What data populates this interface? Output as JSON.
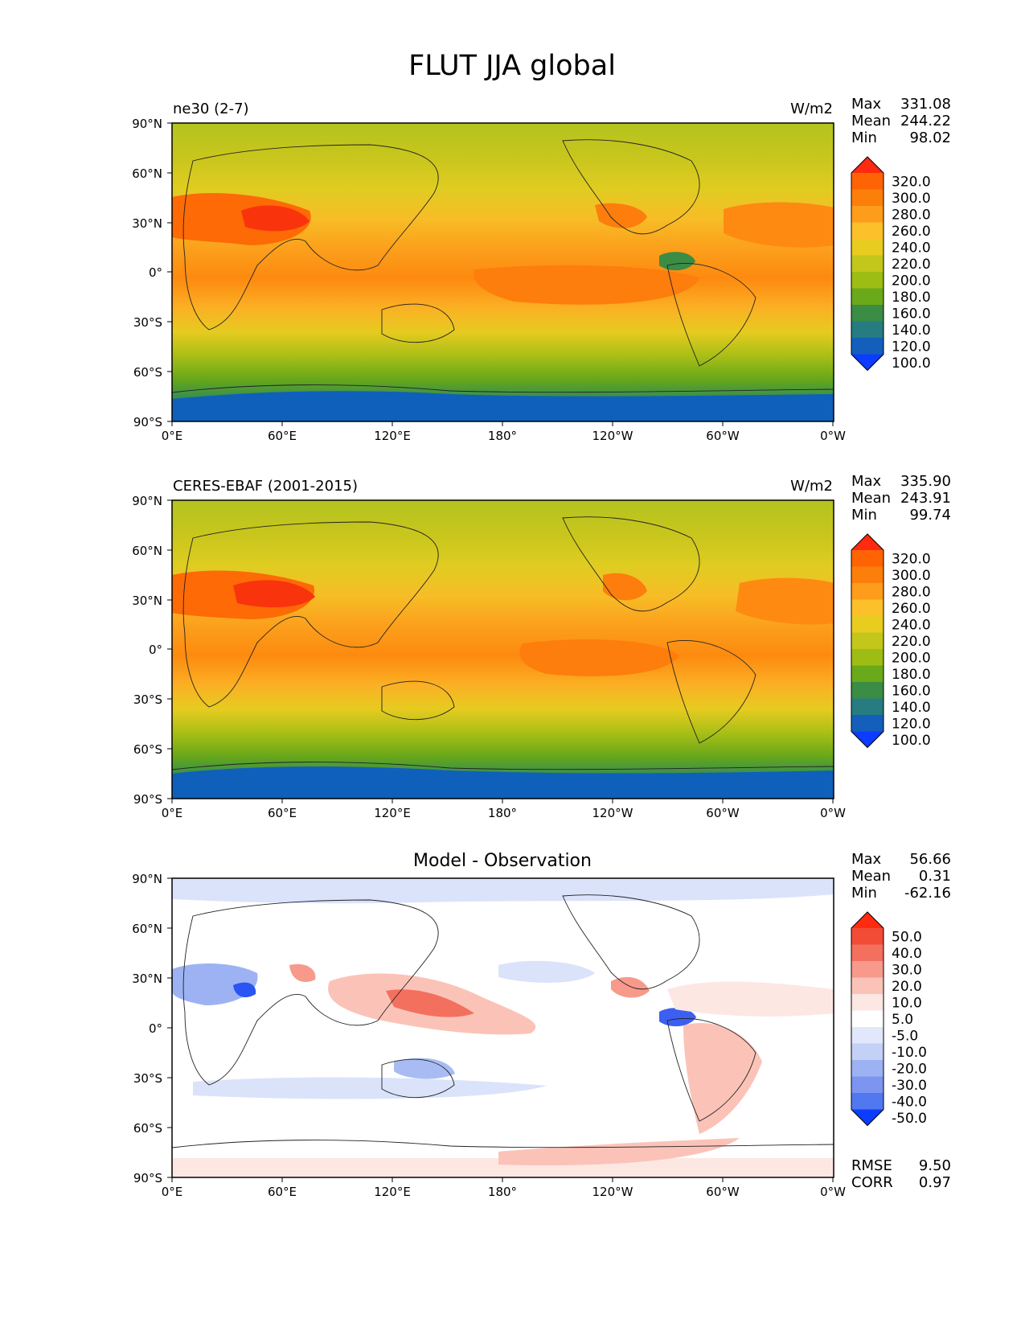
{
  "figure": {
    "title": "FLUT JJA global"
  },
  "chart_data": [
    {
      "type": "heatmap",
      "title": "ne30 (2-7)",
      "units": "W/m2",
      "stats": {
        "labels": [
          "Max",
          "Mean",
          "Min"
        ],
        "values": [
          "331.08",
          "244.22",
          "98.02"
        ]
      },
      "xticks": [
        "0°E",
        "60°E",
        "120°E",
        "180°",
        "120°W",
        "60°W",
        "0°W"
      ],
      "yticks": [
        "90°N",
        "60°N",
        "30°N",
        "0°",
        "30°S",
        "60°S",
        "90°S"
      ],
      "xlim": [
        0,
        360
      ],
      "ylim": [
        -90,
        90
      ],
      "colorbar": {
        "labels": [
          "320.0",
          "300.0",
          "280.0",
          "260.0",
          "240.0",
          "220.0",
          "200.0",
          "180.0",
          "160.0",
          "140.0",
          "120.0",
          "100.0"
        ],
        "colors": [
          "#ff2a0f",
          "#fe6404",
          "#fd7f0b",
          "#fe9c1b",
          "#fbc02a",
          "#e8cc1f",
          "#c3c71b",
          "#9ebd14",
          "#6aa91a",
          "#3b8c45",
          "#267c80",
          "#135fbb",
          "#0b3cff"
        ],
        "extend": "both"
      }
    },
    {
      "type": "heatmap",
      "title": "CERES-EBAF (2001-2015)",
      "units": "W/m2",
      "stats": {
        "labels": [
          "Max",
          "Mean",
          "Min"
        ],
        "values": [
          "335.90",
          "243.91",
          "99.74"
        ]
      },
      "xticks": [
        "0°E",
        "60°E",
        "120°E",
        "180°",
        "120°W",
        "60°W",
        "0°W"
      ],
      "yticks": [
        "90°N",
        "60°N",
        "30°N",
        "0°",
        "30°S",
        "60°S",
        "90°S"
      ],
      "xlim": [
        0,
        360
      ],
      "ylim": [
        -90,
        90
      ],
      "colorbar": {
        "labels": [
          "320.0",
          "300.0",
          "280.0",
          "260.0",
          "240.0",
          "220.0",
          "200.0",
          "180.0",
          "160.0",
          "140.0",
          "120.0",
          "100.0"
        ],
        "colors": [
          "#ff2a0f",
          "#fe6404",
          "#fd7f0b",
          "#fe9c1b",
          "#fbc02a",
          "#e8cc1f",
          "#c3c71b",
          "#9ebd14",
          "#6aa91a",
          "#3b8c45",
          "#267c80",
          "#135fbb",
          "#0b3cff"
        ],
        "extend": "both"
      }
    },
    {
      "type": "heatmap",
      "title": "Model - Observation",
      "units": "",
      "stats": {
        "labels": [
          "Max",
          "Mean",
          "Min"
        ],
        "values": [
          "56.66",
          "0.31",
          "-62.16"
        ]
      },
      "metrics": {
        "labels": [
          "RMSE",
          "CORR"
        ],
        "values": [
          "9.50",
          "0.97"
        ]
      },
      "xticks": [
        "0°E",
        "60°E",
        "120°E",
        "180°",
        "120°W",
        "60°W",
        "0°W"
      ],
      "yticks": [
        "90°N",
        "60°N",
        "30°N",
        "0°",
        "30°S",
        "60°S",
        "90°S"
      ],
      "xlim": [
        0,
        360
      ],
      "ylim": [
        -90,
        90
      ],
      "colorbar": {
        "labels": [
          "50.0",
          "40.0",
          "30.0",
          "20.0",
          "10.0",
          "5.0",
          "-5.0",
          "-10.0",
          "-20.0",
          "-30.0",
          "-40.0",
          "-50.0"
        ],
        "colors": [
          "#ff2a0f",
          "#f24c37",
          "#f3705f",
          "#f79a8b",
          "#fbc3b8",
          "#fde7e3",
          "#ffffff",
          "#e2e8fb",
          "#c3d1f7",
          "#9db2f2",
          "#7b95f0",
          "#5278f1",
          "#0b3cff"
        ],
        "extend": "both"
      }
    }
  ]
}
